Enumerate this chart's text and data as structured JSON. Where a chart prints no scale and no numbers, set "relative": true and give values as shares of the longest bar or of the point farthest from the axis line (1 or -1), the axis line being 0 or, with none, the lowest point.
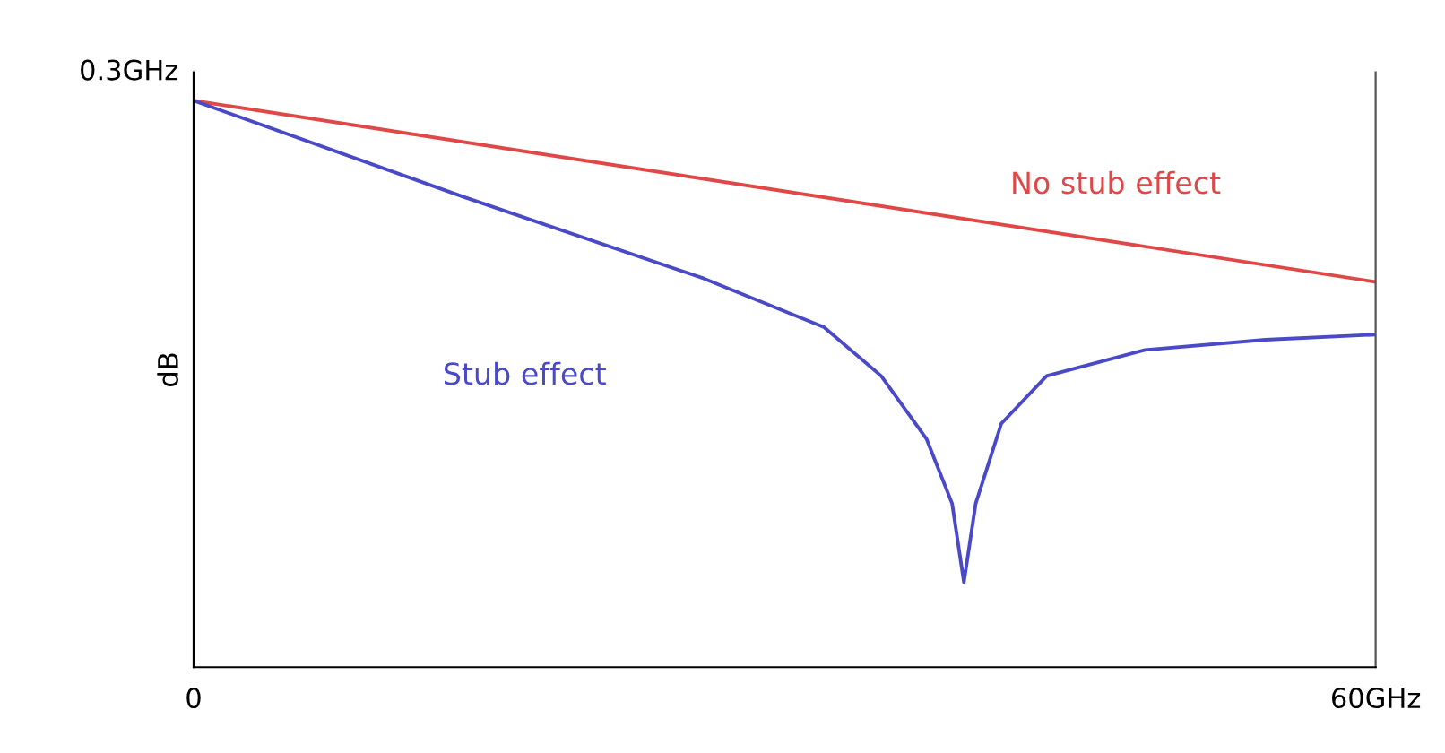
{
  "chart_data": {
    "type": "line",
    "relative": true,
    "ylabel": "dB",
    "xlim": [
      0,
      60
    ],
    "xticks": [
      0,
      {
        "value": 60,
        "label": "60GHz"
      }
    ],
    "annotations": [
      {
        "text": "0.3GHz",
        "x": 0,
        "y": 1.0
      }
    ],
    "series": [
      {
        "name": "No stub effect",
        "color": "#e04848",
        "x": [
          0,
          60
        ],
        "values": [
          1.0,
          0.68
        ]
      },
      {
        "name": "Stub effect",
        "color": "#4a4ac8",
        "x": [
          0,
          13.7,
          25.9,
          32.0,
          34.9,
          37.2,
          38.5,
          39.1,
          39.7,
          41.0,
          43.3,
          48.3,
          54.4,
          60
        ],
        "values": [
          1.0,
          0.83,
          0.686,
          0.6,
          0.514,
          0.403,
          0.289,
          0.15,
          0.289,
          0.43,
          0.514,
          0.56,
          0.578,
          0.587
        ]
      }
    ],
    "grid": false,
    "legend": false,
    "marker": "none",
    "line_style": "solid"
  }
}
